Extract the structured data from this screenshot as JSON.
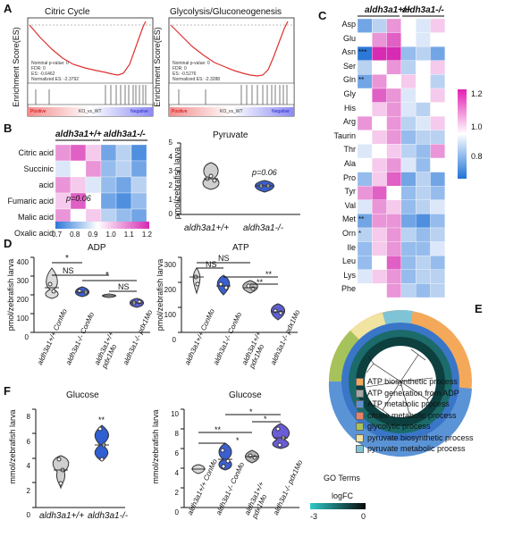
{
  "panels": {
    "a": "A",
    "b": "B",
    "c": "C",
    "d": "D",
    "e": "E",
    "f": "F"
  },
  "gsea": [
    {
      "title": "Citric Cycle",
      "ylabel": "Enrichment Score(ES)",
      "nominal": "Nominal p-value: 0",
      "fdr": "FDR: 0",
      "es": "ES: -0.6462",
      "nes": "Normalized ES: -2.3792",
      "positive": "Positive",
      "negative": "Negative",
      "comparison": "KO_vs_WT"
    },
    {
      "title": "Glycolysis/Gluconeogenesis",
      "ylabel": "Enrichment Score(ES)",
      "nominal": "Nominal p-value: 0",
      "fdr": "FDR: 0",
      "es": "ES: -0.5276",
      "nes": "Normalized ES: -2.3288",
      "positive": "Positive",
      "negative": "Negative",
      "comparison": "KO_vs_WT"
    }
  ],
  "b": {
    "genotype_wt": "aldh3a1+/+",
    "genotype_ko": "aldh3a1-/-",
    "rows": [
      "Citric acid",
      "Succinic acid",
      "Fumaric acid",
      "Malic acid",
      "Oxalic acid"
    ],
    "pval": "p=0.06",
    "colorbar_ticks": [
      "0.7",
      "0.8",
      "0.9",
      "1.0",
      "1.1",
      "1.2"
    ],
    "heat": [
      [
        1.1,
        1.15,
        1.05,
        0.8,
        0.9,
        0.75
      ],
      [
        0.95,
        1.0,
        1.1,
        0.85,
        0.9,
        0.8
      ],
      [
        1.1,
        1.05,
        0.95,
        0.85,
        0.8,
        0.9
      ],
      [
        1.05,
        1.15,
        1.0,
        0.8,
        0.75,
        0.85
      ],
      [
        1.1,
        1.0,
        1.05,
        0.9,
        0.85,
        0.8
      ]
    ],
    "pyruvate": {
      "title": "Pyruvate",
      "ylabel": "pmol/zebrafish larva",
      "yticks": [
        "0",
        "1",
        "2",
        "3",
        "4",
        "5"
      ],
      "pval": "p=0.06",
      "xlabels": [
        "aldh3a1+/+",
        "aldh3a1-/-"
      ]
    }
  },
  "c": {
    "genotype_wt": "aldh3a1+/+",
    "genotype_ko": "aldh3a1-/-",
    "rows": [
      "Asp",
      "Glu",
      "Asn",
      "Ser",
      "Gln",
      "Gly",
      "His",
      "Arg",
      "Taurin",
      "Thr",
      "Ala",
      "Pro",
      "Tyr",
      "Val",
      "Met",
      "Orn",
      "Ile",
      "Leu",
      "Lys",
      "Phe"
    ],
    "stars": {
      "Asn": "***",
      "Gln": "**",
      "Met": "**",
      "Orn": "*"
    },
    "colorbar_ticks": [
      "1.2",
      "1.0",
      "0.8"
    ]
  },
  "d": {
    "adp": {
      "title": "ADP",
      "ylabel": "pmol/zebrafish larva",
      "yticks": [
        "0",
        "100",
        "200",
        "300",
        "400"
      ],
      "ns": "NS",
      "star": "*"
    },
    "atp": {
      "title": "ATP",
      "ylabel": "pmol/zebrafish larva",
      "yticks": [
        "0",
        "100",
        "200",
        "300"
      ],
      "ns": "NS",
      "star2": "**"
    },
    "xlabels": [
      "aldh3a1+/+ ConMo",
      "aldh3a1-/- ConMo",
      "aldh3a1+/+ pdx1Mo",
      "aldh3a1-/- pdx1Mo"
    ]
  },
  "f": {
    "g1": {
      "title": "Glucose",
      "ylabel": "mmol/zebrafish larva",
      "yticks": [
        "0",
        "2",
        "4",
        "6",
        "8"
      ],
      "star": "**",
      "xlabels": [
        "aldh3a1+/+",
        "aldh3a1-/-"
      ]
    },
    "g2": {
      "title": "Glucose",
      "ylabel": "mmol/zebrafish larva",
      "yticks": [
        "0",
        "2",
        "4",
        "6",
        "8",
        "10"
      ],
      "star": "*",
      "star2": "**"
    }
  },
  "e": {
    "legend_title": "GO Terms",
    "terms": [
      {
        "label": "ATP biosynthetic process",
        "color": "#f4a95a"
      },
      {
        "label": "ATP generation from ADP",
        "color": "#a8a8a8"
      },
      {
        "label": "ATP metabolic process",
        "color": "#5b94d6"
      },
      {
        "label": "citrate metabolic process",
        "color": "#ee7f6a"
      },
      {
        "label": "glycolytic process",
        "color": "#a6c25a"
      },
      {
        "label": "pyruvate biosynthetic process",
        "color": "#f1e3a0"
      },
      {
        "label": "pyruvate metabolic process",
        "color": "#7fc4d6"
      }
    ],
    "logfc_label": "logFC",
    "logfc_min": "-3",
    "logfc_max": "0"
  }
}
